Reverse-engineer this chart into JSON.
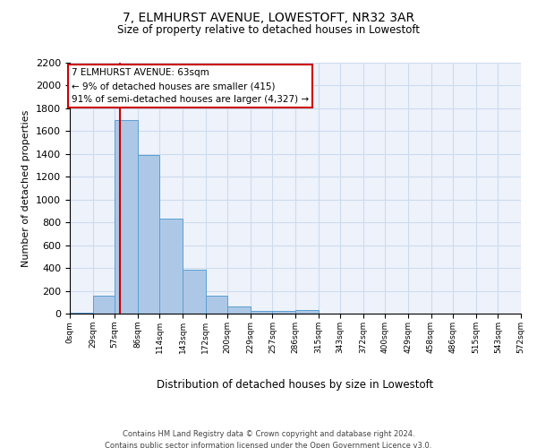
{
  "title": "7, ELMHURST AVENUE, LOWESTOFT, NR32 3AR",
  "subtitle": "Size of property relative to detached houses in Lowestoft",
  "xlabel": "Distribution of detached houses by size in Lowestoft",
  "ylabel": "Number of detached properties",
  "bin_edges": [
    0,
    29,
    57,
    86,
    114,
    143,
    172,
    200,
    229,
    257,
    286,
    315,
    343,
    372,
    400,
    429,
    458,
    486,
    515,
    543,
    572
  ],
  "bin_labels": [
    "0sqm",
    "29sqm",
    "57sqm",
    "86sqm",
    "114sqm",
    "143sqm",
    "172sqm",
    "200sqm",
    "229sqm",
    "257sqm",
    "286sqm",
    "315sqm",
    "343sqm",
    "372sqm",
    "400sqm",
    "429sqm",
    "458sqm",
    "486sqm",
    "515sqm",
    "543sqm",
    "572sqm"
  ],
  "counts": [
    10,
    155,
    1700,
    1390,
    830,
    385,
    160,
    60,
    25,
    25,
    30,
    0,
    0,
    0,
    0,
    0,
    0,
    0,
    0,
    0
  ],
  "bar_facecolor": "#adc8e6",
  "bar_edgecolor": "#5a9fd4",
  "grid_color": "#ccdcee",
  "background_color": "#eef2fb",
  "property_line_x": 63,
  "property_line_color": "#cc0000",
  "annotation_title": "7 ELMHURST AVENUE: 63sqm",
  "annotation_line1": "← 9% of detached houses are smaller (415)",
  "annotation_line2": "91% of semi-detached houses are larger (4,327) →",
  "annotation_box_color": "#cc0000",
  "ylim": [
    0,
    2200
  ],
  "yticks": [
    0,
    200,
    400,
    600,
    800,
    1000,
    1200,
    1400,
    1600,
    1800,
    2000,
    2200
  ],
  "footer_line1": "Contains HM Land Registry data © Crown copyright and database right 2024.",
  "footer_line2": "Contains public sector information licensed under the Open Government Licence v3.0."
}
